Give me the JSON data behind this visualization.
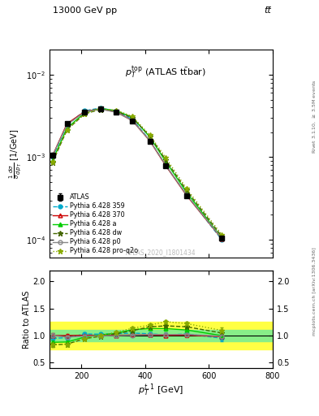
{
  "title_top": "13000 GeV pp",
  "title_top_right": "tt̅",
  "main_title": "$p_T^{\\rm top}$ (ATLAS t$\\bar{\\rm t}$bar)",
  "xlabel": "$p_T^{t,1}$ [GeV]",
  "ylabel_main": "$\\frac{1}{\\sigma}\\frac{d\\sigma}{d\\,p_T}$ [1/GeV]",
  "ylabel_ratio": "Ratio to ATLAS",
  "right_label_top": "Rivet 3.1.10, $\\geq$ 3.5M events",
  "right_label_bottom": "mcplots.cern.ch [arXiv:1306.3436]",
  "watermark": "ATLAS_2020_I1801434",
  "xlim": [
    100,
    800
  ],
  "ylim_main": [
    6e-05,
    0.02
  ],
  "ylim_ratio": [
    0.4,
    2.2
  ],
  "ratio_yticks": [
    0.5,
    1.0,
    1.5,
    2.0
  ],
  "x_data": [
    110,
    155,
    210,
    260,
    310,
    360,
    415,
    465,
    530,
    640
  ],
  "atlas_y": [
    0.00105,
    0.00255,
    0.00355,
    0.00385,
    0.0035,
    0.00275,
    0.00155,
    0.00078,
    0.00034,
    0.000105
  ],
  "atlas_yerr": [
    7e-05,
    9e-05,
    0.0001,
    0.00011,
    0.0001,
    9e-05,
    6e-05,
    3.5e-05,
    1.8e-05,
    8e-07
  ],
  "p359_y": [
    0.001,
    0.00245,
    0.00365,
    0.00395,
    0.00362,
    0.00288,
    0.0016,
    0.00079,
    0.00035,
    0.0001
  ],
  "p370_y": [
    0.00105,
    0.00255,
    0.00357,
    0.00387,
    0.00352,
    0.00278,
    0.00157,
    0.000785,
    0.000343,
    0.000103
  ],
  "pa_y": [
    0.00092,
    0.00225,
    0.00345,
    0.0039,
    0.00365,
    0.00305,
    0.00175,
    0.00088,
    0.000375,
    0.000105
  ],
  "pdw_y": [
    0.00087,
    0.00215,
    0.00335,
    0.0038,
    0.00362,
    0.003,
    0.0018,
    0.00092,
    0.000395,
    0.00011
  ],
  "pp0_y": [
    0.00105,
    0.00248,
    0.00352,
    0.00382,
    0.0035,
    0.00277,
    0.00158,
    0.000795,
    0.000347,
    0.000104
  ],
  "pproq2o_y": [
    0.00088,
    0.00215,
    0.00335,
    0.00385,
    0.00372,
    0.00312,
    0.00185,
    0.00098,
    0.000415,
    0.000115
  ],
  "ratio_p359": [
    0.95,
    0.96,
    1.03,
    1.026,
    1.034,
    1.047,
    1.032,
    1.013,
    1.029,
    0.952
  ],
  "ratio_p370": [
    1.0,
    1.0,
    1.006,
    1.005,
    1.006,
    1.011,
    1.013,
    1.006,
    1.009,
    0.981
  ],
  "ratio_pa": [
    0.876,
    0.882,
    0.972,
    1.013,
    1.043,
    1.109,
    1.129,
    1.128,
    1.103,
    1.0
  ],
  "ratio_pdw": [
    0.829,
    0.843,
    0.944,
    0.987,
    1.034,
    1.091,
    1.161,
    1.179,
    1.162,
    1.048
  ],
  "ratio_pp0": [
    1.0,
    0.973,
    0.992,
    0.993,
    1.0,
    1.007,
    1.019,
    1.019,
    1.021,
    0.99
  ],
  "ratio_pproq2o": [
    0.838,
    0.843,
    0.944,
    1.0,
    1.063,
    1.135,
    1.194,
    1.256,
    1.221,
    1.095
  ],
  "ratio_p359_err": [
    0.04,
    0.03,
    0.025,
    0.022,
    0.022,
    0.025,
    0.03,
    0.035,
    0.04,
    0.06
  ],
  "ratio_p370_err": [
    0.04,
    0.03,
    0.025,
    0.022,
    0.022,
    0.025,
    0.03,
    0.035,
    0.04,
    0.06
  ],
  "ratio_pa_err": [
    0.04,
    0.03,
    0.025,
    0.022,
    0.022,
    0.025,
    0.03,
    0.035,
    0.04,
    0.06
  ],
  "ratio_pdw_err": [
    0.04,
    0.03,
    0.025,
    0.022,
    0.022,
    0.025,
    0.03,
    0.035,
    0.04,
    0.06
  ],
  "ratio_pp0_err": [
    0.04,
    0.03,
    0.025,
    0.022,
    0.022,
    0.025,
    0.03,
    0.035,
    0.04,
    0.06
  ],
  "ratio_pproq2o_err": [
    0.04,
    0.03,
    0.025,
    0.022,
    0.022,
    0.025,
    0.03,
    0.035,
    0.04,
    0.06
  ],
  "yellow_band_y_lo": 0.75,
  "yellow_band_y_hi": 1.25,
  "green_band_y_lo": 0.9,
  "green_band_y_hi": 1.1,
  "color_atlas": "#000000",
  "color_p359": "#00aacc",
  "color_p370": "#cc0000",
  "color_pa": "#00cc00",
  "color_pdw": "#446600",
  "color_pp0": "#888888",
  "color_pproq2o": "#88aa00",
  "color_yellow_band": "#ffff44",
  "color_green_band": "#88ee88",
  "bg_color": "#ffffff"
}
